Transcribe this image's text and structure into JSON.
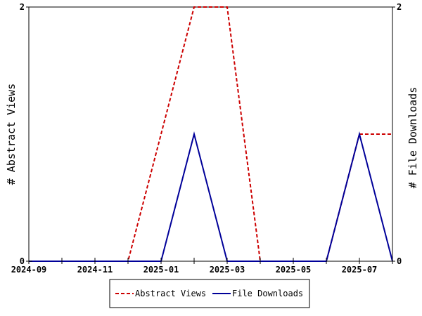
{
  "chart_data": {
    "type": "line",
    "title": "",
    "xlabel": "",
    "x_ticks": [
      "2024-09",
      "2024-11",
      "2025-01",
      "2025-03",
      "2025-05",
      "2025-07"
    ],
    "x_range": [
      "2024-09",
      "2025-08"
    ],
    "x": [
      "2024-09",
      "2024-10",
      "2024-11",
      "2024-12",
      "2025-01",
      "2025-02",
      "2025-03",
      "2025-04",
      "2025-05",
      "2025-06",
      "2025-07",
      "2025-08"
    ],
    "y_left": {
      "label": "# Abstract Views",
      "ylim": [
        0,
        2
      ],
      "ticks": [
        "0",
        "2"
      ]
    },
    "y_right": {
      "label": "# File Downloads",
      "ylim": [
        0,
        2
      ],
      "ticks": [
        "0",
        "2"
      ]
    },
    "series": [
      {
        "name": "Abstract Views",
        "axis": "left",
        "color": "#cc0000",
        "style": "dashed",
        "values": [
          0,
          0,
          0,
          0,
          1,
          2,
          2,
          0,
          0,
          0,
          1,
          1
        ]
      },
      {
        "name": "File Downloads",
        "axis": "right",
        "color": "#000099",
        "style": "solid",
        "values": [
          0,
          0,
          0,
          0,
          0,
          1,
          0,
          0,
          0,
          0,
          1,
          0
        ]
      }
    ],
    "grid": false,
    "legend_position": "bottom-center"
  }
}
